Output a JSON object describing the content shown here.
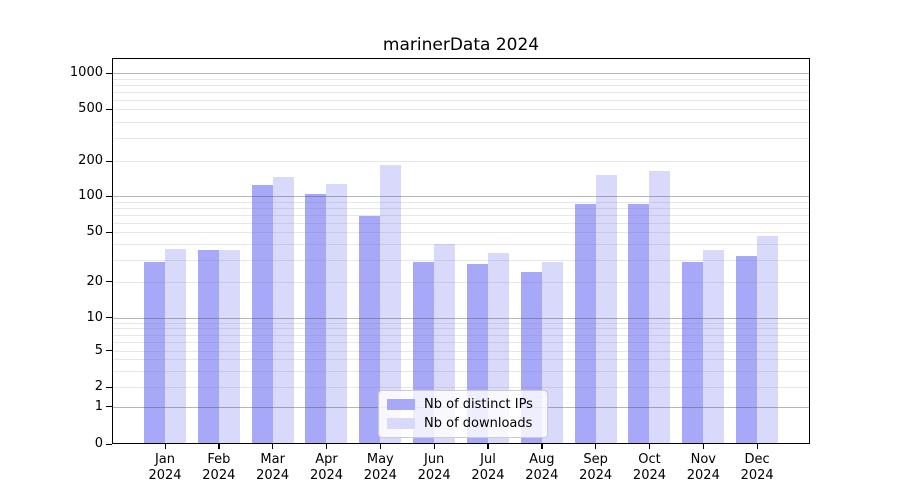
{
  "title": "marinerData 2024",
  "chart_data": {
    "type": "bar",
    "title": "marinerData 2024",
    "categories": [
      "Jan 2024",
      "Feb 2024",
      "Mar 2024",
      "Apr 2024",
      "May 2024",
      "Jun 2024",
      "Jul 2024",
      "Aug 2024",
      "Sep 2024",
      "Oct 2024",
      "Nov 2024",
      "Dec 2024"
    ],
    "series": [
      {
        "name": "Nb of distinct IPs",
        "color": "#a8a8f9",
        "values": [
          29,
          36,
          126,
          104,
          69,
          29,
          28,
          24,
          87,
          87,
          29,
          32
        ]
      },
      {
        "name": "Nb of downloads",
        "color": "#d9d9fb",
        "values": [
          37,
          36,
          145,
          127,
          186,
          40,
          34,
          29,
          153,
          166,
          36,
          47
        ]
      }
    ],
    "y_axis": {
      "scale": "symlog",
      "ticks": [
        0,
        1,
        2,
        5,
        10,
        20,
        50,
        100,
        200,
        500,
        1000
      ],
      "major_gridlines": [
        1,
        10,
        100,
        1000
      ],
      "minor_gridlines": [
        2,
        3,
        4,
        5,
        6,
        7,
        8,
        9,
        20,
        30,
        40,
        50,
        60,
        70,
        80,
        90,
        200,
        300,
        400,
        500,
        600,
        700,
        800,
        900
      ],
      "ylim": [
        0,
        1340
      ]
    },
    "legend": {
      "position": "lower center",
      "entries": [
        "Nb of distinct IPs",
        "Nb of downloads"
      ]
    },
    "grid": true
  }
}
